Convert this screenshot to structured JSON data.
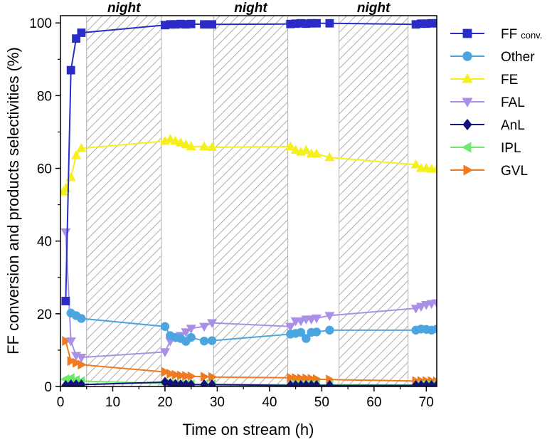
{
  "chart_data": {
    "type": "line",
    "title": "",
    "xlabel": "Time on stream (h)",
    "ylabel": "FF conversion and products selectivities (%)",
    "xlim": [
      0,
      72
    ],
    "ylim": [
      0,
      102
    ],
    "xticks": [
      0,
      10,
      20,
      30,
      40,
      50,
      60,
      70
    ],
    "yticks": [
      0,
      20,
      40,
      60,
      80,
      100
    ],
    "grid": false,
    "legend_position": "right-outside",
    "night_periods": [
      {
        "label": "night",
        "start": 5,
        "end": 19.3
      },
      {
        "label": "night",
        "start": 29.3,
        "end": 43.5
      },
      {
        "label": "night",
        "start": 53.3,
        "end": 66.5
      }
    ],
    "series": [
      {
        "name": "FF",
        "name_sub": "conv.",
        "color": "#2b2bc8",
        "marker": "square",
        "x": [
          1,
          2,
          3,
          4,
          20,
          21,
          22,
          23,
          24,
          25,
          27.5,
          29,
          44,
          45,
          46,
          47,
          48,
          49,
          51.5,
          68,
          69,
          70,
          71,
          72
        ],
        "y": [
          23.5,
          87,
          95.7,
          97.3,
          99.4,
          99.6,
          99.6,
          99.7,
          99.6,
          99.7,
          99.6,
          99.6,
          99.7,
          99.8,
          99.9,
          99.8,
          99.9,
          99.9,
          99.9,
          99.6,
          99.8,
          99.8,
          99.9,
          99.9
        ]
      },
      {
        "name": "Other",
        "name_sub": "",
        "color": "#4ba6e0",
        "marker": "circle",
        "x": [
          2,
          3,
          4,
          20,
          21,
          22,
          23,
          24,
          25,
          27.5,
          29,
          44,
          45,
          46,
          47,
          48,
          49,
          51.5,
          68,
          69,
          70,
          71,
          72
        ],
        "y": [
          20.2,
          19.5,
          18.7,
          16.5,
          14,
          13.5,
          13.2,
          12.4,
          13.5,
          12.5,
          12.6,
          14.4,
          14.6,
          14.9,
          13.2,
          14.9,
          15,
          15.5,
          15.5,
          15.8,
          15.7,
          15.5,
          15.8
        ]
      },
      {
        "name": "FE",
        "name_sub": "",
        "color": "#f5f01c",
        "marker": "triangle-up",
        "x": [
          0.5,
          1,
          2,
          3,
          4,
          20,
          21,
          22,
          23,
          24,
          25,
          27.5,
          29,
          44,
          45,
          46,
          47,
          48,
          49,
          51.5,
          68,
          69,
          70,
          71,
          72
        ],
        "y": [
          53.5,
          54.5,
          57.5,
          63.5,
          65.5,
          67.5,
          68,
          67.5,
          67,
          66.5,
          66,
          66,
          65.8,
          66,
          65,
          64.5,
          65,
          64,
          64,
          63,
          61,
          60,
          60,
          59.8,
          59.8
        ]
      },
      {
        "name": "FAL",
        "name_sub": "",
        "color": "#a990e6",
        "marker": "triangle-down",
        "x": [
          1,
          2,
          3,
          4,
          20,
          21,
          22,
          23,
          24,
          25,
          27.5,
          29,
          44,
          45,
          46,
          47,
          48,
          49,
          51.5,
          68,
          69,
          70,
          71,
          72
        ],
        "y": [
          42.5,
          12.5,
          8.5,
          8,
          9.5,
          12.5,
          13.5,
          14,
          15,
          16,
          16.5,
          17.5,
          16.5,
          18,
          18,
          18.5,
          18.5,
          18.8,
          19.5,
          21.5,
          22,
          22.5,
          22.8,
          23
        ]
      },
      {
        "name": "AnL",
        "name_sub": "",
        "color": "#12127a",
        "marker": "diamond",
        "x": [
          1,
          2,
          3,
          4,
          20,
          21,
          22,
          23,
          24,
          25,
          27.5,
          29,
          44,
          45,
          46,
          47,
          48,
          49,
          51.5,
          68,
          69,
          70,
          71,
          72
        ],
        "y": [
          0.3,
          0.5,
          0.5,
          0.5,
          1.2,
          0.8,
          0.6,
          0.5,
          0.5,
          0.5,
          0.5,
          0.5,
          0.3,
          0.3,
          0.3,
          0.3,
          0.3,
          0.3,
          0.3,
          0.3,
          0.3,
          0.3,
          0.3,
          0.3
        ]
      },
      {
        "name": "IPL",
        "name_sub": "",
        "color": "#6cea6c",
        "marker": "triangle-left",
        "x": [
          1,
          2,
          3,
          4,
          20,
          21,
          22,
          23,
          24,
          25,
          27.5,
          29,
          44,
          45,
          46,
          47,
          48,
          49,
          51.5,
          68,
          69,
          70,
          71,
          72
        ],
        "y": [
          2,
          2.3,
          1.8,
          1.5,
          0.8,
          0.7,
          0.7,
          0.6,
          0.6,
          0.6,
          0.6,
          0.6,
          0.5,
          0.5,
          0.5,
          0.5,
          0.5,
          0.5,
          0.5,
          0.4,
          0.4,
          0.4,
          0.4,
          0.4
        ]
      },
      {
        "name": "GVL",
        "name_sub": "",
        "color": "#f07a22",
        "marker": "triangle-right",
        "x": [
          1,
          2,
          3,
          4,
          20,
          21,
          22,
          23,
          24,
          25,
          27.5,
          29,
          44,
          45,
          46,
          47,
          48,
          49,
          51.5,
          68,
          69,
          70,
          71,
          72
        ],
        "y": [
          12.5,
          7,
          6.5,
          6,
          4,
          3.5,
          3.2,
          3,
          2.9,
          2.8,
          2.7,
          2.6,
          2.4,
          2.3,
          2.2,
          2.2,
          2.1,
          2,
          1.9,
          1.5,
          1.5,
          1.5,
          1.5,
          1.4
        ]
      }
    ]
  }
}
